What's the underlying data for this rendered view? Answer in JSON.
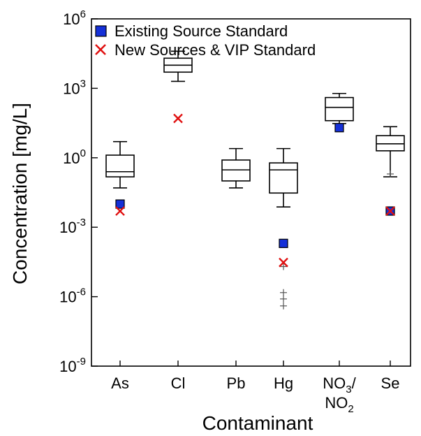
{
  "chart_data": {
    "type": "box",
    "xlabel": "Contaminant",
    "ylabel": "Concentration [mg/L]",
    "yscale": "log",
    "ylim": [
      1e-09,
      1000000.0
    ],
    "categories": [
      "As",
      "Cl",
      "Pb",
      "Hg",
      "NO3/NO2",
      "Se"
    ],
    "y_ticks": [
      {
        "value": 1000000.0,
        "base": "10",
        "exp": "6"
      },
      {
        "value": 1000.0,
        "base": "10",
        "exp": "3"
      },
      {
        "value": 1,
        "base": "10",
        "exp": "0"
      },
      {
        "value": 0.001,
        "base": "10",
        "exp": "-3"
      },
      {
        "value": 1e-06,
        "base": "10",
        "exp": "-6"
      },
      {
        "value": 1e-09,
        "base": "10",
        "exp": "-9"
      }
    ],
    "boxes": [
      {
        "category": "As",
        "whisker_low": 0.05,
        "q1": 0.15,
        "median": 0.25,
        "q3": 1.3,
        "whisker_high": 5,
        "outliers": []
      },
      {
        "category": "Cl",
        "whisker_low": 2000,
        "q1": 5000,
        "median": 10000,
        "q3": 20000,
        "whisker_high": 40000,
        "outliers": []
      },
      {
        "category": "Pb",
        "whisker_low": 0.05,
        "q1": 0.1,
        "median": 0.3,
        "q3": 0.8,
        "whisker_high": 2.5,
        "outliers": []
      },
      {
        "category": "Hg",
        "whisker_low": 0.0075,
        "q1": 0.03,
        "median": 0.3,
        "q3": 0.6,
        "whisker_high": 2.5,
        "outliers": [
          2e-05,
          1.5e-06,
          8e-07,
          4e-07
        ]
      },
      {
        "category": "NO3/NO2",
        "whisker_low": 30,
        "q1": 40,
        "median": 150,
        "q3": 400,
        "whisker_high": 600,
        "outliers": []
      },
      {
        "category": "Se",
        "whisker_low": 0.15,
        "q1": 2,
        "median": 4,
        "q3": 9,
        "whisker_high": 22,
        "outliers": [
          0.2
        ]
      }
    ],
    "series": [
      {
        "name": "Existing Source Standard",
        "marker": "square",
        "color": "#1530d8",
        "points": [
          {
            "category": "As",
            "value": 0.01
          },
          {
            "category": "Hg",
            "value": 0.0002
          },
          {
            "category": "NO3/NO2",
            "value": 20
          },
          {
            "category": "Se",
            "value": 0.005
          }
        ]
      },
      {
        "name": "New Sources & VIP Standard",
        "marker": "x",
        "color": "#e01010",
        "points": [
          {
            "category": "As",
            "value": 0.005
          },
          {
            "category": "Cl",
            "value": 50
          },
          {
            "category": "Hg",
            "value": 3e-05
          },
          {
            "category": "Se",
            "value": 0.005
          }
        ]
      }
    ],
    "legend_position": "top-left",
    "grid": false
  },
  "labels": {
    "cat_no3_line1_prefix": "NO",
    "cat_no3_line1_sub": "3",
    "cat_no3_line1_suffix": "/",
    "cat_no3_line2_prefix": "NO",
    "cat_no3_line2_sub": "2"
  }
}
